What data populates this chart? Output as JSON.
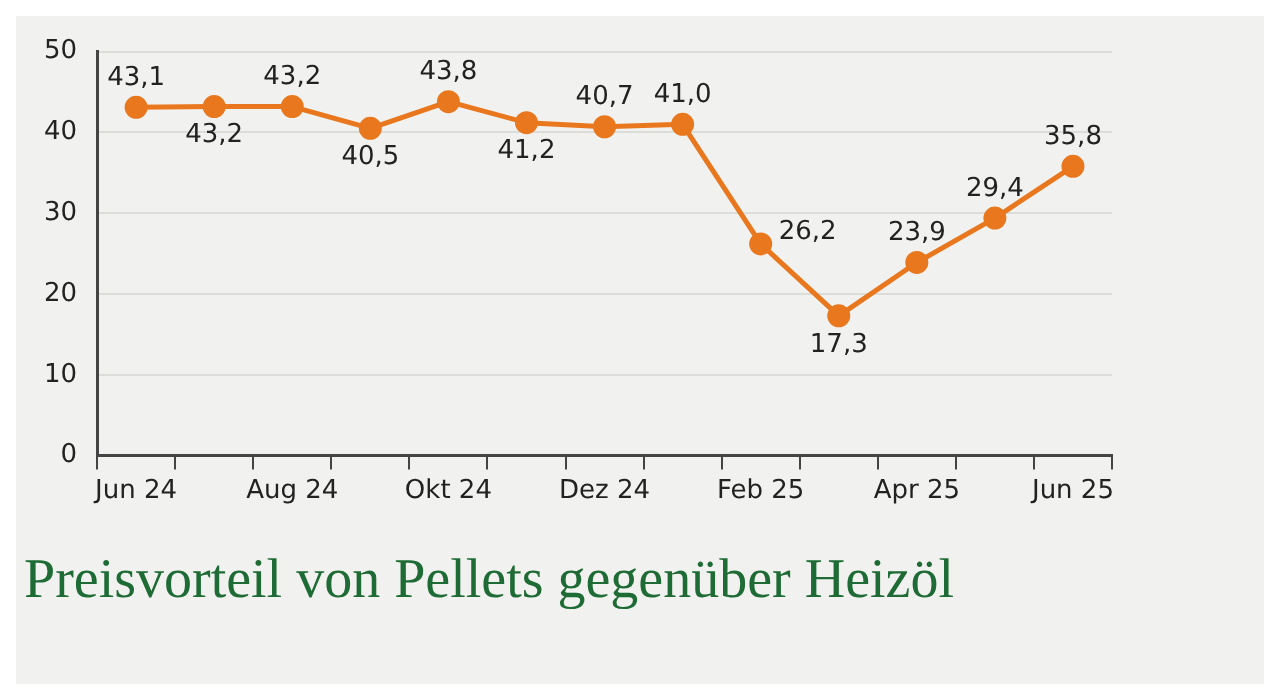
{
  "chart_data": {
    "type": "line",
    "title": "Preisvorteil von Pellets gegenüber Heizöl",
    "categories": [
      "Jun 24",
      null,
      "Aug 24",
      null,
      "Okt 24",
      null,
      "Dez 24",
      null,
      "Feb 25",
      null,
      "Apr 25",
      null,
      "Jun 25"
    ],
    "series": [
      {
        "color": "#e8771e",
        "values": [
          43.1,
          43.2,
          43.2,
          40.5,
          43.8,
          41.2,
          40.7,
          41.0,
          26.2,
          17.3,
          23.9,
          29.4,
          35.8
        ],
        "value_labels": [
          "43,1",
          "43,2",
          "43,2",
          "40,5",
          "43,8",
          "41,2",
          "40,7",
          "41,0",
          "26,2",
          "17,3",
          "23,9",
          "29,4",
          "35,8"
        ]
      }
    ],
    "ylim": [
      0,
      50
    ],
    "yticks": [
      0,
      10,
      20,
      30,
      40,
      50
    ],
    "grid": "y",
    "legend": false,
    "marker": "circle",
    "line_style": "solid"
  }
}
